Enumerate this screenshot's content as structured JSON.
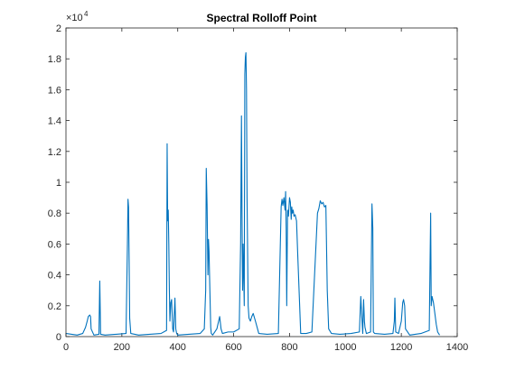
{
  "chart_data": {
    "type": "line",
    "title": "Spectral Rolloff Point",
    "xlabel": "",
    "ylabel": "",
    "xlim": [
      0,
      1400
    ],
    "ylim": [
      0,
      20000
    ],
    "y_scale_multiplier": {
      "base": "×10",
      "exponent": "4"
    },
    "x_ticks": [
      0,
      200,
      400,
      600,
      800,
      1000,
      1200,
      1400
    ],
    "x_tick_labels": [
      "0",
      "200",
      "400",
      "600",
      "800",
      "1000",
      "1200",
      "1400"
    ],
    "y_ticks": [
      0,
      2000,
      4000,
      6000,
      8000,
      10000,
      12000,
      14000,
      16000,
      18000,
      20000
    ],
    "y_tick_labels": [
      "0",
      "0.2",
      "0.4",
      "0.6",
      "0.8",
      "1",
      "1.2",
      "1.4",
      "1.6",
      "1.8",
      "2"
    ],
    "grid": false,
    "series": [
      {
        "color": "#0072BD",
        "x": [
          1,
          20,
          40,
          60,
          70,
          76,
          80,
          85,
          88,
          90,
          100,
          118,
          121,
          124,
          140,
          180,
          215,
          220,
          222,
          224,
          226,
          228,
          232,
          260,
          300,
          340,
          360,
          362,
          364,
          366,
          368,
          370,
          372,
          375,
          378,
          382,
          385,
          390,
          393,
          396,
          400,
          440,
          480,
          495,
          500,
          502,
          505,
          508,
          510,
          512,
          515,
          518,
          520,
          525,
          540,
          550,
          555,
          560,
          580,
          600,
          620,
          625,
          628,
          630,
          632,
          634,
          638,
          640,
          642,
          644,
          646,
          648,
          650,
          652,
          655,
          660,
          665,
          670,
          678,
          690,
          720,
          760,
          770,
          773,
          776,
          780,
          784,
          786,
          788,
          790,
          793,
          796,
          800,
          803,
          806,
          808,
          810,
          813,
          816,
          820,
          825,
          830,
          840,
          860,
          880,
          900,
          905,
          910,
          915,
          920,
          925,
          930,
          935,
          938,
          940,
          950,
          980,
          1020,
          1050,
          1055,
          1058,
          1062,
          1065,
          1068,
          1070,
          1075,
          1090,
          1095,
          1098,
          1100,
          1105,
          1140,
          1170,
          1175,
          1177,
          1180,
          1190,
          1200,
          1205,
          1208,
          1212,
          1215,
          1230,
          1270,
          1300,
          1303,
          1305,
          1307,
          1310,
          1315,
          1320,
          1325,
          1330,
          1337
        ],
        "values": [
          200,
          150,
          100,
          200,
          600,
          1000,
          1300,
          1400,
          1300,
          500,
          100,
          150,
          3600,
          150,
          100,
          150,
          200,
          6000,
          8900,
          8400,
          5000,
          1200,
          200,
          100,
          150,
          200,
          400,
          12500,
          7500,
          8200,
          6000,
          3000,
          1000,
          2200,
          2400,
          500,
          300,
          2500,
          500,
          200,
          100,
          150,
          200,
          500,
          3000,
          10900,
          8500,
          4000,
          6300,
          5500,
          3000,
          600,
          200,
          100,
          500,
          1300,
          500,
          200,
          300,
          300,
          500,
          6000,
          14300,
          8000,
          3000,
          6000,
          2000,
          17000,
          18100,
          18400,
          16000,
          9000,
          5500,
          2000,
          1200,
          1000,
          1300,
          1500,
          1000,
          200,
          150,
          200,
          8400,
          8900,
          8500,
          9000,
          8200,
          9400,
          7000,
          2000,
          8200,
          7800,
          9000,
          8700,
          7600,
          8400,
          8000,
          8200,
          7800,
          7900,
          7500,
          5000,
          200,
          200,
          300,
          8000,
          8300,
          8800,
          8600,
          8700,
          8400,
          8500,
          3000,
          1500,
          500,
          200,
          150,
          200,
          300,
          2600,
          1500,
          200,
          2400,
          1000,
          600,
          200,
          300,
          8600,
          7000,
          300,
          200,
          150,
          200,
          1000,
          2500,
          300,
          200,
          1000,
          2200,
          2400,
          2000,
          500,
          100,
          200,
          400,
          5000,
          8000,
          2000,
          2600,
          2200,
          1500,
          800,
          300,
          100
        ]
      }
    ]
  }
}
